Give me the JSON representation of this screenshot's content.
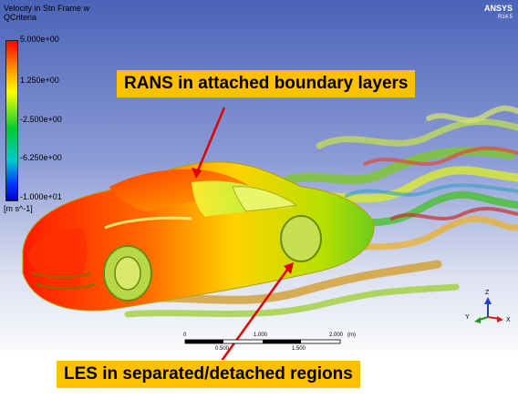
{
  "viewport": {
    "title_line1": "Velocity in Stn Frame w",
    "title_line2": "QCriteria",
    "legend": {
      "labels": [
        "5.000e+00",
        "1.250e+00",
        "-2.500e+00",
        "-6.250e+00",
        "-1.000e+01"
      ],
      "unit": "[m s^-1]"
    },
    "brand": "ANSYS",
    "brand_version": "R14.5",
    "scale_bar": {
      "top_labels": [
        "0",
        "1.000",
        "2.000",
        "(m)"
      ],
      "bottom_labels": [
        "0.500",
        "1.500"
      ]
    },
    "axes": {
      "y": "Y",
      "z": "Z",
      "x": "X"
    }
  },
  "callouts": {
    "rans": "RANS in attached boundary layers",
    "les": "LES in separated/detached regions"
  },
  "colors": {
    "callout_bg": "#ffc000",
    "arrow": "#e00000"
  }
}
